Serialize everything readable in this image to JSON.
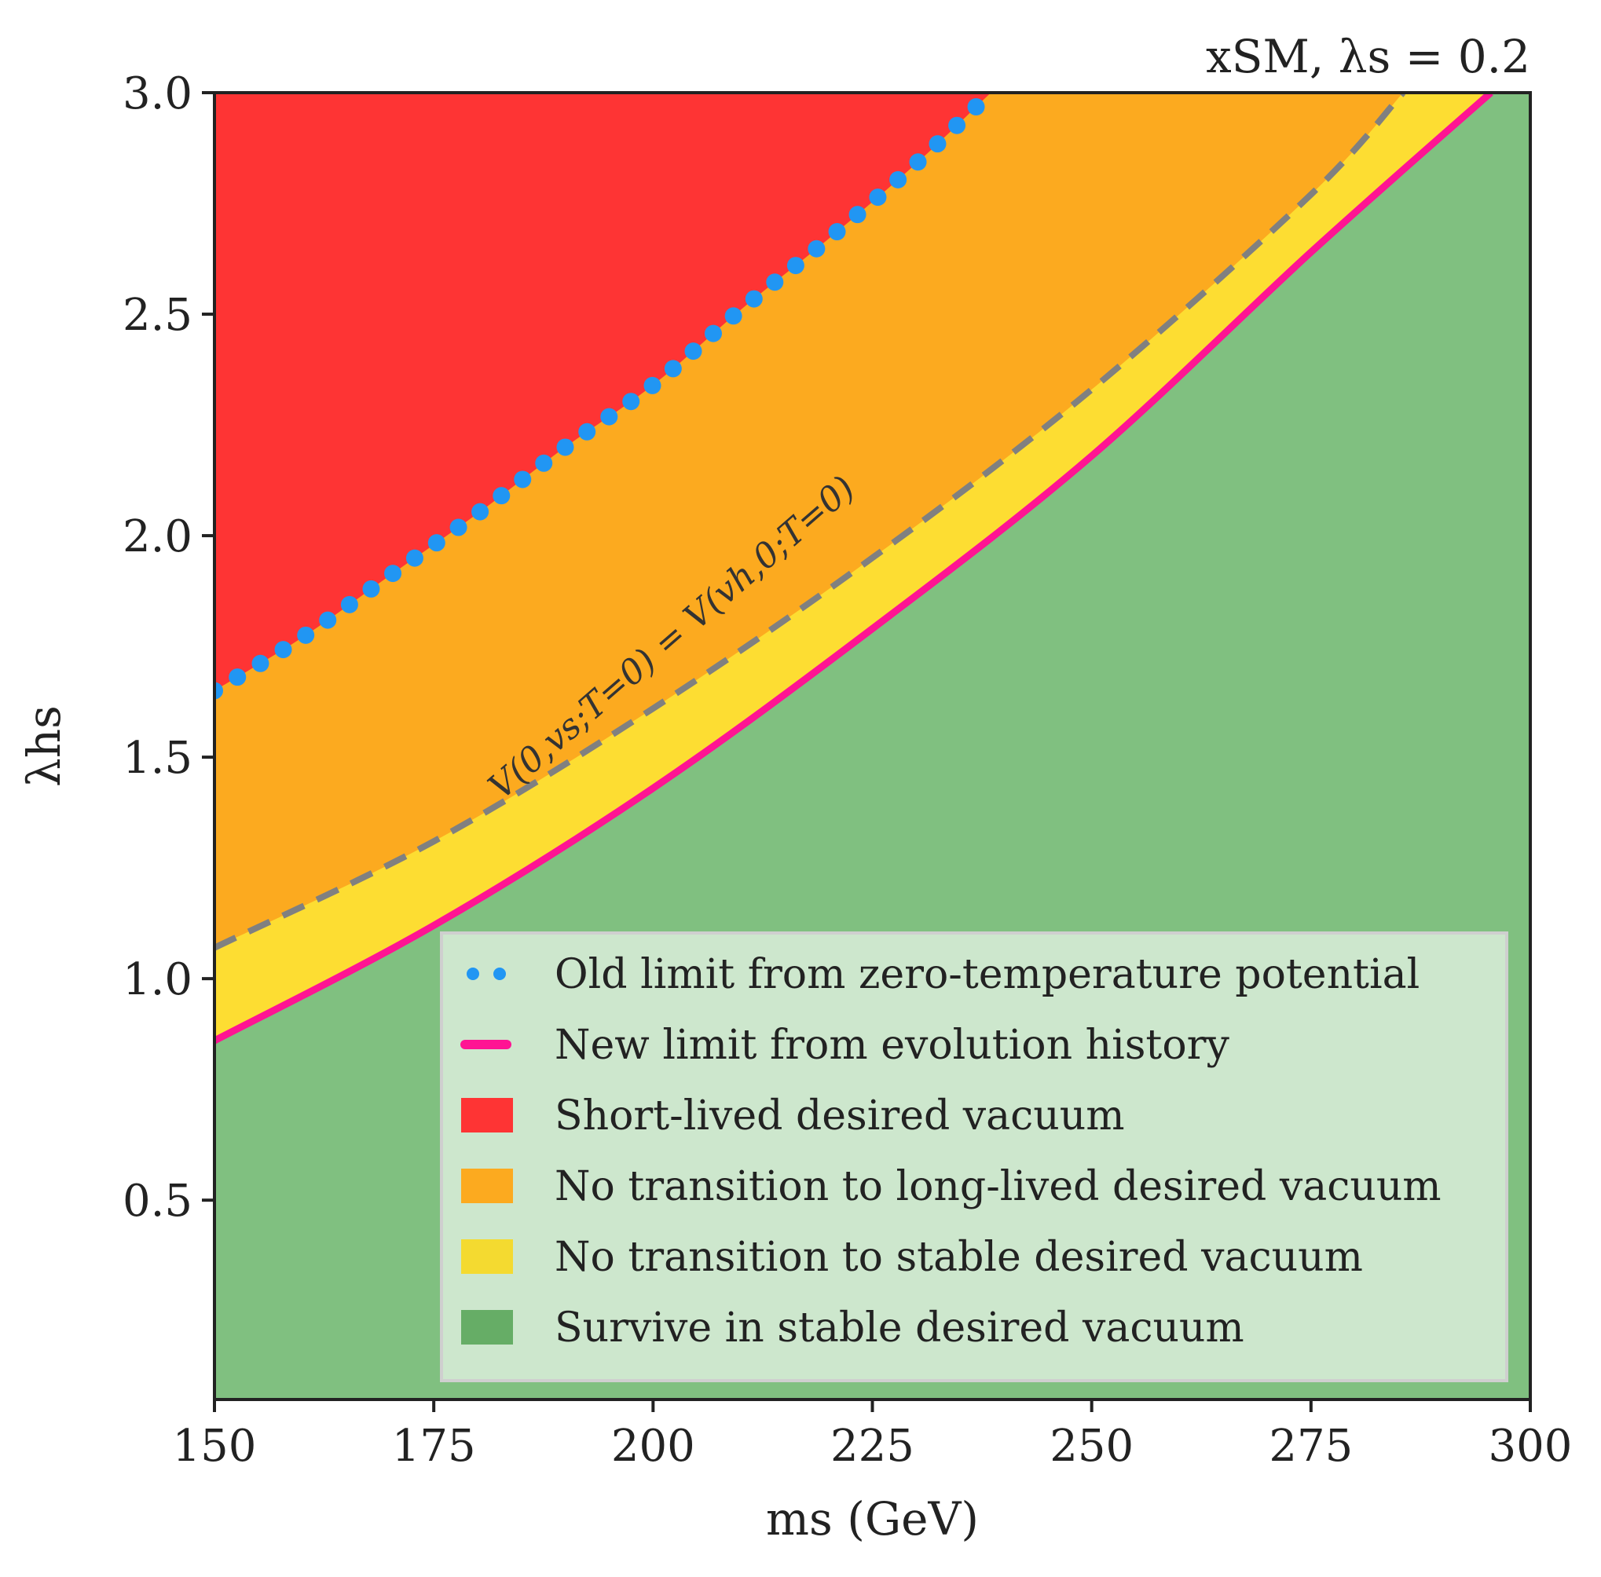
{
  "chart_data": {
    "type": "area",
    "title": "xSM, λs = 0.2",
    "xlabel": "ms (GeV)",
    "ylabel": "λhs",
    "xlim": [
      150,
      300
    ],
    "ylim": [
      0.05,
      3.0
    ],
    "xticks": [
      150,
      175,
      200,
      225,
      250,
      275,
      300
    ],
    "xtick_labels": [
      "150",
      "175",
      "200",
      "225",
      "250",
      "275",
      "300"
    ],
    "yticks": [
      0.5,
      1.0,
      1.5,
      2.0,
      2.5,
      3.0
    ],
    "ytick_labels": [
      "0.5",
      "1.0",
      "1.5",
      "2.0",
      "2.5",
      "3.0"
    ],
    "colors": {
      "red": "#fe3434",
      "orange": "#fcaa1f",
      "yellow": "#fddd32",
      "green": "#80c080",
      "blue_dots": "#2196f3",
      "pink": "#ff1493",
      "gray_dash": "#808080",
      "legend_bg": "#d4ead4"
    },
    "boundaries": {
      "old_limit_blue_dotted": {
        "x": [
          150,
          160,
          170,
          180,
          190,
          200,
          210,
          220,
          230,
          238.5
        ],
        "y": [
          1.65,
          1.77,
          1.91,
          2.05,
          2.2,
          2.34,
          2.51,
          2.67,
          2.84,
          3.0
        ]
      },
      "zero_temp_degeneracy_dashed": {
        "x": [
          150,
          175,
          200,
          225,
          250,
          275,
          285.5
        ],
        "y": [
          1.07,
          1.31,
          1.61,
          1.95,
          2.33,
          2.77,
          3.0
        ]
      },
      "new_limit_pink": {
        "x": [
          150,
          175,
          200,
          225,
          250,
          275,
          295.5
        ],
        "y": [
          0.86,
          1.12,
          1.43,
          1.79,
          2.18,
          2.64,
          3.0
        ]
      }
    },
    "annotation": {
      "text": "V(0,vs;T=0) = V(vh,0;T=0)",
      "x": 203,
      "y": 1.75,
      "rotation_deg": -41
    },
    "legend": {
      "position": "lower-right",
      "entries": [
        {
          "label": "Old limit from zero-temperature potential",
          "kind": "dots",
          "color": "#2196f3"
        },
        {
          "label": "New limit from evolution history",
          "kind": "line",
          "color": "#ff1493"
        },
        {
          "label": "Short-lived desired vacuum",
          "kind": "patch",
          "color": "#fe3434"
        },
        {
          "label": "No transition to long-lived desired vacuum",
          "kind": "patch",
          "color": "#fcaa1f"
        },
        {
          "label": "No transition to stable desired vacuum",
          "kind": "patch",
          "color": "#f4da30"
        },
        {
          "label": "Survive in stable desired vacuum",
          "kind": "patch",
          "color": "#66ad66"
        }
      ]
    }
  }
}
